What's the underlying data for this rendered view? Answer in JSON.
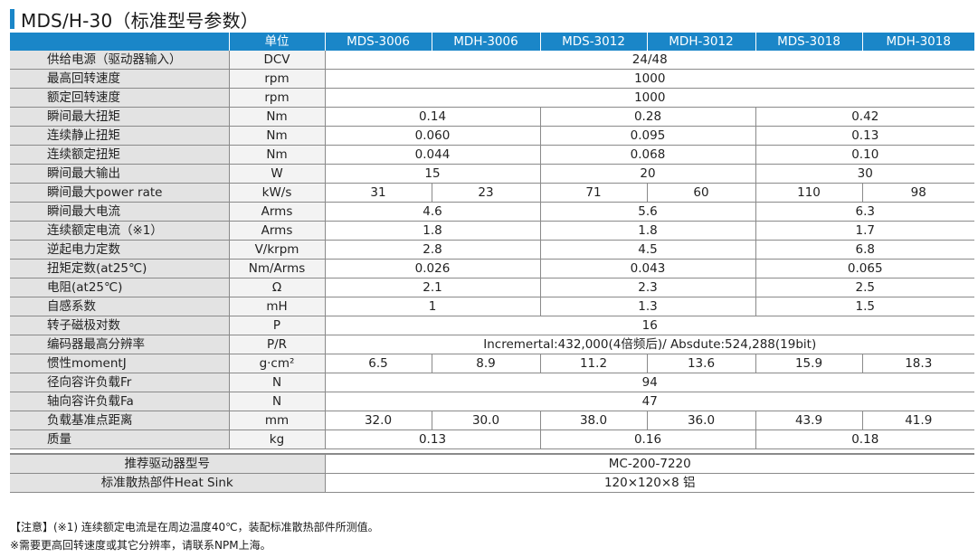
{
  "title": "MDS/H-30（标准型号参数）",
  "header": {
    "unit": "单位",
    "models": [
      "MDS-3006",
      "MDH-3006",
      "MDS-3012",
      "MDH-3012",
      "MDS-3018",
      "MDH-3018"
    ]
  },
  "rows": [
    {
      "name": "供给电源（驱动器输入）",
      "unit": "DCV",
      "vals": [
        "24/48"
      ],
      "spans": [
        6
      ]
    },
    {
      "name": "最高回转速度",
      "unit": "rpm",
      "vals": [
        "1000"
      ],
      "spans": [
        6
      ]
    },
    {
      "name": "额定回转速度",
      "unit": "rpm",
      "vals": [
        "1000"
      ],
      "spans": [
        6
      ]
    },
    {
      "name": "瞬间最大扭矩",
      "unit": "Nm",
      "vals": [
        "0.14",
        "0.28",
        "0.42"
      ],
      "spans": [
        2,
        2,
        2
      ]
    },
    {
      "name": "连续静止扭矩",
      "unit": "Nm",
      "vals": [
        "0.060",
        "0.095",
        "0.13"
      ],
      "spans": [
        2,
        2,
        2
      ]
    },
    {
      "name": "连续额定扭矩",
      "unit": "Nm",
      "vals": [
        "0.044",
        "0.068",
        "0.10"
      ],
      "spans": [
        2,
        2,
        2
      ]
    },
    {
      "name": "瞬间最大输出",
      "unit": "W",
      "vals": [
        "15",
        "20",
        "30"
      ],
      "spans": [
        2,
        2,
        2
      ]
    },
    {
      "name": "瞬间最大power rate",
      "unit": "kW/s",
      "vals": [
        "31",
        "23",
        "71",
        "60",
        "110",
        "98"
      ],
      "spans": [
        1,
        1,
        1,
        1,
        1,
        1
      ]
    },
    {
      "name": "瞬间最大电流",
      "unit": "Arms",
      "vals": [
        "4.6",
        "5.6",
        "6.3"
      ],
      "spans": [
        2,
        2,
        2
      ]
    },
    {
      "name": "连续额定电流（※1）",
      "unit": "Arms",
      "vals": [
        "1.8",
        "1.8",
        "1.7"
      ],
      "spans": [
        2,
        2,
        2
      ]
    },
    {
      "name": "逆起电力定数",
      "unit": "V/krpm",
      "vals": [
        "2.8",
        "4.5",
        "6.8"
      ],
      "spans": [
        2,
        2,
        2
      ]
    },
    {
      "name": "扭矩定数(at25℃)",
      "unit": "Nm/Arms",
      "vals": [
        "0.026",
        "0.043",
        "0.065"
      ],
      "spans": [
        2,
        2,
        2
      ]
    },
    {
      "name": "电阻(at25℃)",
      "unit": "Ω",
      "vals": [
        "2.1",
        "2.3",
        "2.5"
      ],
      "spans": [
        2,
        2,
        2
      ]
    },
    {
      "name": "自感系数",
      "unit": "mH",
      "vals": [
        "1",
        "1.3",
        "1.5"
      ],
      "spans": [
        2,
        2,
        2
      ]
    },
    {
      "name": "转子磁极对数",
      "unit": "P",
      "vals": [
        "16"
      ],
      "spans": [
        6
      ]
    },
    {
      "name": "编码器最高分辨率",
      "unit": "P/R",
      "vals": [
        "Incremertal:432,000(4倍频后)/ Absdute:524,288(19bit)"
      ],
      "spans": [
        6
      ]
    },
    {
      "name": "惯性momentJ",
      "unit": "g·cm²",
      "vals": [
        "6.5",
        "8.9",
        "11.2",
        "13.6",
        "15.9",
        "18.3"
      ],
      "spans": [
        1,
        1,
        1,
        1,
        1,
        1
      ]
    },
    {
      "name": "径向容许负载Fr",
      "unit": "N",
      "vals": [
        "94"
      ],
      "spans": [
        6
      ]
    },
    {
      "name": "轴向容许负载Fa",
      "unit": "N",
      "vals": [
        "47"
      ],
      "spans": [
        6
      ]
    },
    {
      "name": "负载基准点距离",
      "unit": "mm",
      "vals": [
        "32.0",
        "30.0",
        "38.0",
        "36.0",
        "43.9",
        "41.9"
      ],
      "spans": [
        1,
        1,
        1,
        1,
        1,
        1
      ]
    },
    {
      "name": "质量",
      "unit": "kg",
      "vals": [
        "0.13",
        "0.16",
        "0.18"
      ],
      "spans": [
        2,
        2,
        2
      ]
    }
  ],
  "recommend_rows": [
    {
      "name": "推荐驱动器型号",
      "vals": [
        "MC-200-7220"
      ]
    },
    {
      "name": "标准散热部件Heat Sink",
      "vals": [
        "120×120×8 铝"
      ]
    }
  ],
  "notes": [
    "【注意】(※1) 连续额定电流是在周边温度40℃，装配标准散热部件所测值。",
    "※需要更高回转速度或其它分辨率，请联系NPM上海。"
  ],
  "colors": {
    "header_blue": "#1a86c8",
    "label_gray": "#e3e3e3"
  }
}
